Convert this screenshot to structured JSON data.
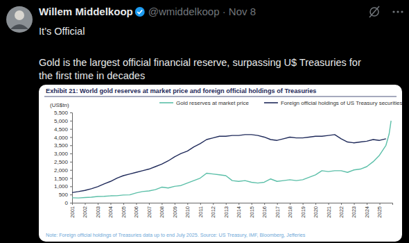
{
  "post": {
    "author": "Willem Middelkoop",
    "meta": "@wmiddelkoop · Nov 8",
    "lines": [
      "It’s Official",
      "Gold is the largest official financial reserve, surpassing U$ Treasuries for",
      "the first time in decades"
    ]
  },
  "chart_data": {
    "type": "line",
    "title": "Exhibit 21: World gold reserves at market price and foreign official holdings of Treasuries",
    "y_label": "(US$tn)",
    "note": "Note: Foreign official holdings of Treasuries data up to end July 2025. Source: US Treasury, IMF, Bloomberg, Jefferies",
    "x": [
      2001,
      2001.5,
      2002,
      2002.5,
      2003,
      2003.5,
      2004,
      2004.5,
      2005,
      2005.5,
      2006,
      2006.5,
      2007,
      2007.5,
      2008,
      2008.5,
      2009,
      2009.5,
      2010,
      2010.5,
      2011,
      2011.5,
      2012,
      2012.5,
      2013,
      2013.5,
      2014,
      2014.5,
      2015,
      2015.5,
      2016,
      2016.5,
      2017,
      2017.5,
      2018,
      2018.5,
      2019,
      2019.5,
      2020,
      2020.5,
      2021,
      2021.5,
      2022,
      2022.5,
      2023,
      2023.5,
      2024,
      2024.5,
      2025,
      2025.5,
      2025.75,
      2025.9
    ],
    "series": [
      {
        "name": "Gold reserves at market price",
        "color": "#5bbfa8",
        "values": [
          300,
          290,
          320,
          340,
          380,
          390,
          420,
          430,
          470,
          480,
          600,
          680,
          720,
          800,
          950,
          900,
          1000,
          1050,
          1200,
          1350,
          1500,
          1800,
          1750,
          1700,
          1650,
          1350,
          1300,
          1350,
          1250,
          1200,
          1250,
          1450,
          1300,
          1350,
          1400,
          1350,
          1400,
          1550,
          1700,
          1950,
          1900,
          1950,
          1950,
          1850,
          2000,
          2050,
          2200,
          2500,
          2900,
          3500,
          4200,
          5000
        ]
      },
      {
        "name": "Foreign official holdings of US Treasury securities",
        "color": "#1f2a5a",
        "values": [
          620,
          680,
          750,
          850,
          980,
          1150,
          1300,
          1500,
          1650,
          1750,
          1850,
          1950,
          2050,
          2200,
          2350,
          2550,
          2800,
          3000,
          3150,
          3400,
          3600,
          3850,
          3950,
          4050,
          4050,
          4100,
          4100,
          4150,
          4150,
          4100,
          4000,
          3850,
          3800,
          3900,
          4000,
          3950,
          3950,
          4000,
          4050,
          4050,
          4100,
          4150,
          3900,
          3700,
          3650,
          3700,
          3750,
          3850,
          3800,
          3900,
          null,
          null
        ]
      }
    ],
    "xlim": [
      2001,
      2026
    ],
    "xticks": [
      2001,
      2002,
      2003,
      2004,
      2005,
      2006,
      2007,
      2008,
      2009,
      2010,
      2011,
      2012,
      2013,
      2014,
      2015,
      2016,
      2017,
      2018,
      2019,
      2020,
      2021,
      2022,
      2023,
      2024,
      2025
    ],
    "ylim": [
      0,
      5500
    ],
    "yticks": [
      0,
      500,
      {
        "value": 1000,
        "label": "1,000"
      },
      {
        "value": 1500,
        "label": "1,500"
      },
      {
        "value": 2000,
        "label": "2,000"
      },
      {
        "value": 2500,
        "label": "2,500"
      },
      {
        "value": 3000,
        "label": "3,000"
      },
      {
        "value": 3500,
        "label": "3,500"
      },
      {
        "value": 4000,
        "label": "4,000"
      },
      {
        "value": 4500,
        "label": "4,500"
      },
      {
        "value": 5000,
        "label": "5,000"
      },
      {
        "value": 5500,
        "label": "5,500"
      }
    ],
    "grid": false,
    "legend": "top"
  }
}
